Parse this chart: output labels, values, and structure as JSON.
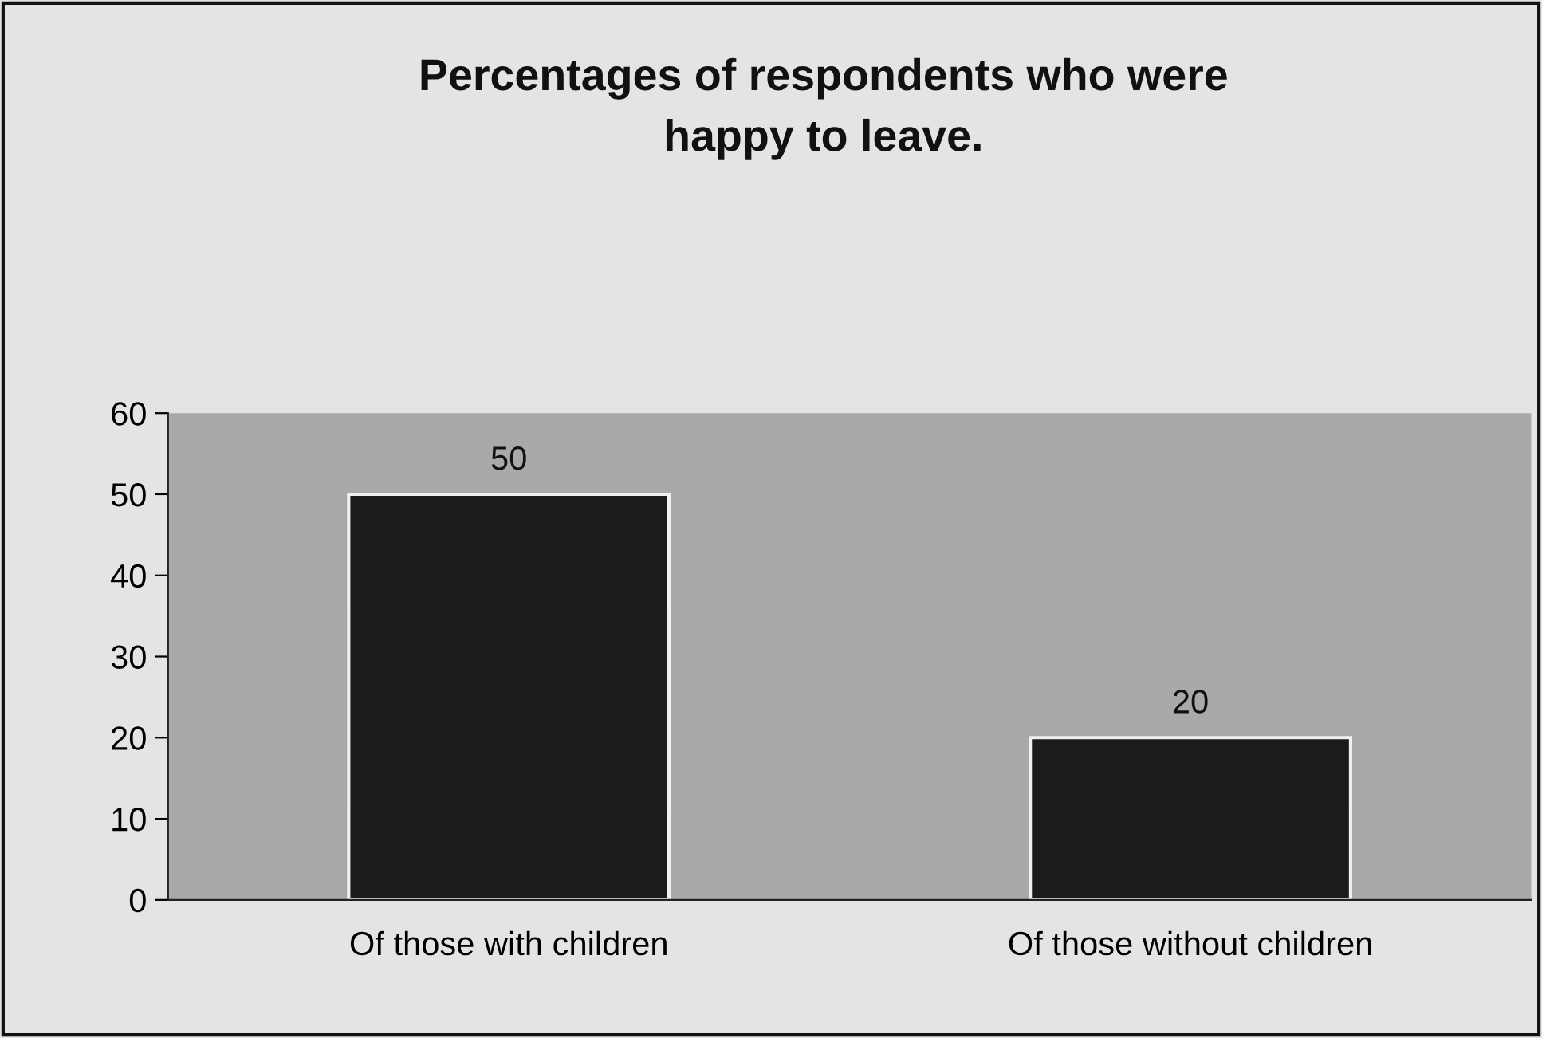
{
  "chart_data": {
    "type": "bar",
    "title": "Percentages of respondents who were\nhappy to leave.",
    "categories": [
      "Of those with children",
      "Of those without children"
    ],
    "values": [
      50,
      20
    ],
    "color": "#1c1c1c",
    "ylim": [
      0,
      60
    ],
    "yticks": [
      0,
      10,
      20,
      30,
      40,
      50,
      60
    ],
    "data_labels": true,
    "grid": false,
    "legend": false
  }
}
